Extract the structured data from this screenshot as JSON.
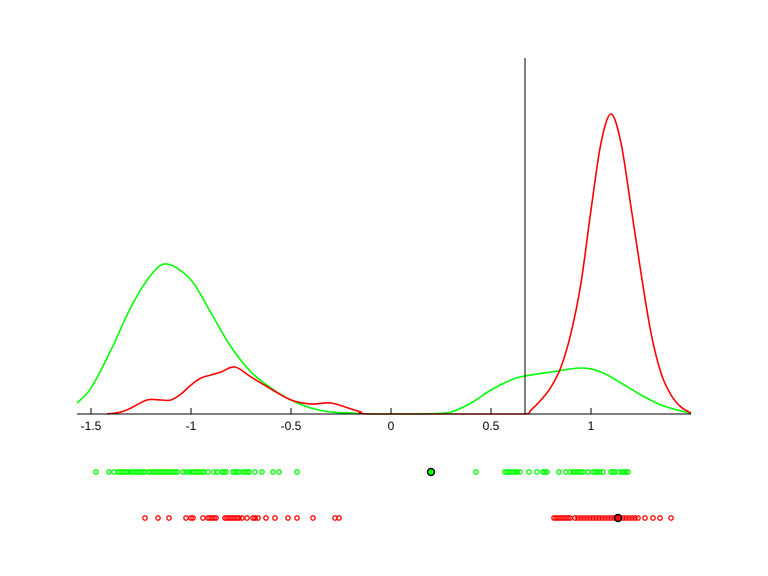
{
  "chart_data": {
    "type": "line",
    "title": "",
    "xlabel": "",
    "ylabel": "",
    "xlim": [
      -1.57,
      1.5
    ],
    "ylim": [
      0,
      3.56
    ],
    "grid": false,
    "x_ticks": [
      -1.5,
      -1,
      -0.5,
      0,
      0.5,
      1
    ],
    "x_tick_labels": [
      "-1.5",
      "-1",
      "-0.5",
      "0",
      "0.5",
      "1"
    ],
    "threshold_x": 0.67,
    "colors": {
      "green": "#00ff00",
      "red": "#ff0000",
      "axis": "#000000"
    },
    "series": [
      {
        "color": "#00ff00",
        "x": [
          -1.57,
          -1.5,
          -1.4,
          -1.3,
          -1.2,
          -1.12,
          -1.0,
          -0.9,
          -0.8,
          -0.7,
          -0.6,
          -0.5,
          -0.4,
          -0.3,
          -0.2,
          -0.1,
          0,
          0.2,
          0.3,
          0.4,
          0.5,
          0.6,
          0.67,
          0.8,
          0.95,
          1.05,
          1.15,
          1.25,
          1.35,
          1.45,
          1.5
        ],
        "y": [
          0.11,
          0.26,
          0.64,
          1.07,
          1.39,
          1.5,
          1.34,
          1.01,
          0.67,
          0.42,
          0.26,
          0.14,
          0.06,
          0.02,
          0.01,
          0.0,
          0.0,
          0.003,
          0.02,
          0.11,
          0.24,
          0.34,
          0.38,
          0.42,
          0.46,
          0.42,
          0.31,
          0.19,
          0.09,
          0.03,
          0.01
        ]
      },
      {
        "color": "#ff0000",
        "x": [
          -1.42,
          -1.35,
          -1.3,
          -1.22,
          -1.15,
          -1.1,
          -1.05,
          -1.0,
          -0.95,
          -0.9,
          -0.85,
          -0.78,
          -0.7,
          -0.6,
          -0.5,
          -0.4,
          -0.3,
          -0.2,
          -0.15,
          -0.1,
          0.5,
          0.67,
          0.7,
          0.75,
          0.8,
          0.85,
          0.9,
          0.95,
          1.0,
          1.05,
          1.1,
          1.15,
          1.2,
          1.25,
          1.3,
          1.35,
          1.4,
          1.45,
          1.5
        ],
        "y": [
          0,
          0.02,
          0.06,
          0.14,
          0.14,
          0.14,
          0.2,
          0.29,
          0.36,
          0.39,
          0.42,
          0.47,
          0.37,
          0.25,
          0.14,
          0.1,
          0.11,
          0.05,
          0.02,
          0,
          0,
          0,
          0.04,
          0.14,
          0.27,
          0.47,
          0.81,
          1.31,
          2.04,
          2.71,
          3.0,
          2.71,
          2.07,
          1.41,
          0.81,
          0.41,
          0.19,
          0.07,
          0.01
        ]
      }
    ],
    "strips": [
      {
        "color": "#00ff00",
        "mean": 0.2,
        "values": [
          -1.475,
          -1.41,
          -1.385,
          -1.365,
          -1.355,
          -1.345,
          -1.335,
          -1.325,
          -1.315,
          -1.3,
          -1.29,
          -1.28,
          -1.27,
          -1.26,
          -1.25,
          -1.24,
          -1.23,
          -1.21,
          -1.2,
          -1.19,
          -1.18,
          -1.17,
          -1.16,
          -1.15,
          -1.14,
          -1.13,
          -1.12,
          -1.11,
          -1.1,
          -1.09,
          -1.08,
          -1.07,
          -1.04,
          -1.025,
          -1.01,
          -0.995,
          -0.985,
          -0.975,
          -0.965,
          -0.955,
          -0.945,
          -0.935,
          -0.915,
          -0.885,
          -0.87,
          -0.845,
          -0.835,
          -0.825,
          -0.79,
          -0.78,
          -0.77,
          -0.76,
          -0.74,
          -0.73,
          -0.72,
          -0.71,
          -0.68,
          -0.645,
          -0.59,
          -0.56,
          -0.47,
          0.425,
          0.57,
          0.58,
          0.59,
          0.6,
          0.61,
          0.62,
          0.63,
          0.645,
          0.69,
          0.73,
          0.76,
          0.77,
          0.78,
          0.84,
          0.875,
          0.895,
          0.91,
          0.92,
          0.93,
          0.94,
          0.95,
          0.96,
          0.985,
          1.01,
          1.02,
          1.03,
          1.045,
          1.06,
          1.1,
          1.11,
          1.12,
          1.14,
          1.155,
          1.165,
          1.175,
          1.185
        ]
      },
      {
        "color": "#ff0000",
        "mean": 1.135,
        "values": [
          -1.23,
          -1.165,
          -1.11,
          -1.025,
          -1.0,
          -0.99,
          -0.94,
          -0.915,
          -0.905,
          -0.895,
          -0.885,
          -0.875,
          -0.83,
          -0.82,
          -0.81,
          -0.8,
          -0.79,
          -0.78,
          -0.77,
          -0.76,
          -0.745,
          -0.72,
          -0.69,
          -0.68,
          -0.665,
          -0.625,
          -0.58,
          -0.515,
          -0.47,
          -0.39,
          -0.28,
          -0.26,
          0.815,
          0.825,
          0.835,
          0.845,
          0.855,
          0.865,
          0.875,
          0.885,
          0.895,
          0.92,
          0.935,
          0.95,
          0.965,
          0.98,
          0.995,
          1.01,
          1.025,
          1.04,
          1.055,
          1.07,
          1.085,
          1.1,
          1.115,
          1.13,
          1.145,
          1.16,
          1.175,
          1.19,
          1.205,
          1.22,
          1.235,
          1.27,
          1.31,
          1.345,
          1.4
        ]
      }
    ]
  }
}
